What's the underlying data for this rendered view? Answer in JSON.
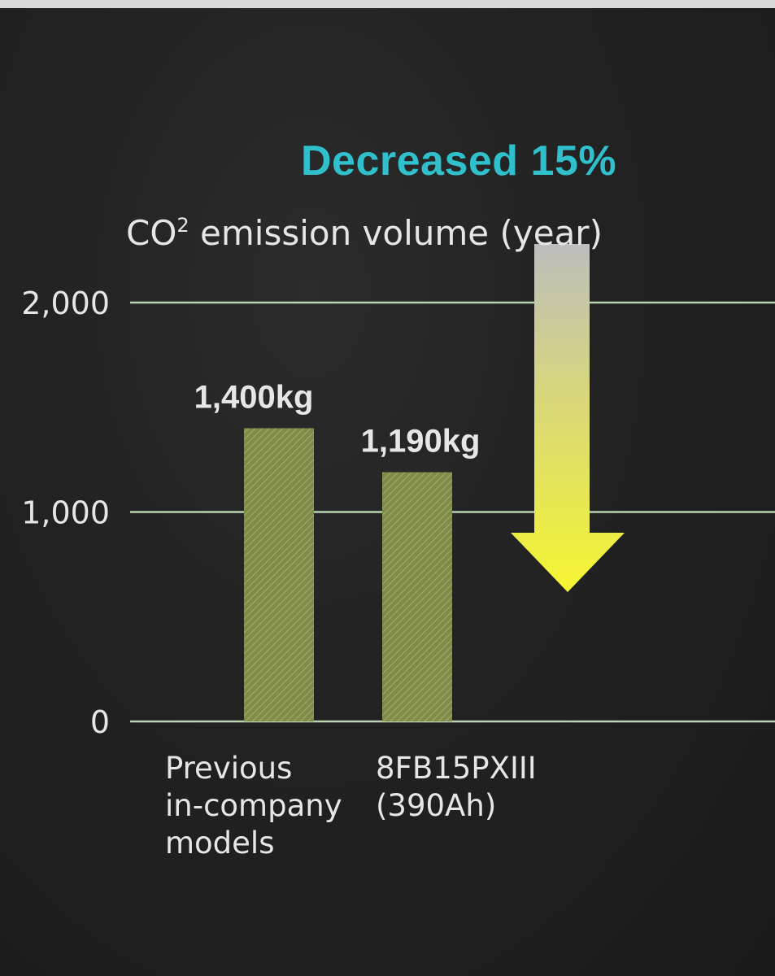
{
  "headline": "Decreased 15%",
  "chart_data": {
    "type": "bar",
    "title_main": "CO",
    "title_sup": "2",
    "title_rest": " emission volume (year)",
    "categories": [
      "Previous\nin-company\nmodels",
      "8FB15PXIII\n(390Ah)"
    ],
    "values": [
      1400,
      1190
    ],
    "value_labels": [
      "1,400kg",
      "1,190kg"
    ],
    "ylim": [
      0,
      2000
    ],
    "yticks": [
      0,
      1000,
      2000
    ],
    "ytick_labels": [
      "0",
      "1,000",
      "2,000"
    ],
    "unit": "kg",
    "grid": true,
    "annotation": "Decreased 15%"
  },
  "colors": {
    "headline": "#2fc0cc",
    "bar": "#8e9a52",
    "gridline": "#b9d4b0",
    "arrow_top": "#bdbdbd",
    "arrow_bottom": "#f5f532"
  }
}
